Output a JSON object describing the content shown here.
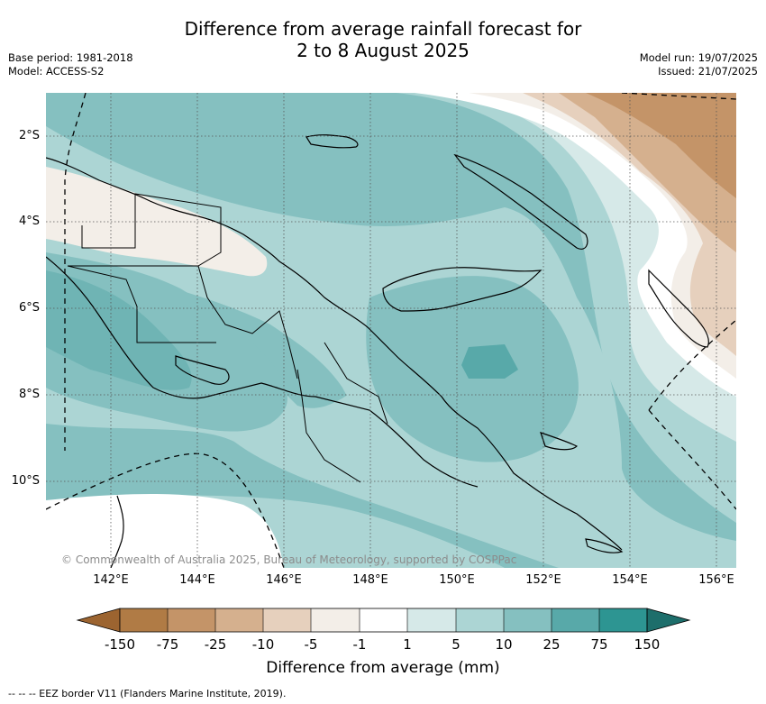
{
  "title_line1": "Difference from average rainfall forecast for",
  "title_line2": "2 to 8 August 2025",
  "meta_left": {
    "base_period": "Base period: 1981-2018",
    "model": "Model: ACCESS-S2"
  },
  "meta_right": {
    "model_run": "Model run: 19/07/2025",
    "issued": "Issued: 21/07/2025"
  },
  "map": {
    "lon_ticks": [
      "142°E",
      "144°E",
      "146°E",
      "148°E",
      "150°E",
      "152°E",
      "154°E",
      "156°E"
    ],
    "lat_ticks": [
      "2°S",
      "4°S",
      "6°S",
      "8°S",
      "10°S"
    ],
    "copyright": "© Commonwealth of Australia 2025, Bureau of Meteorology, supported by COSPPac",
    "gridlines": true
  },
  "colorbar": {
    "title": "Difference from average (mm)",
    "labels": [
      "-150",
      "-75",
      "-25",
      "-10",
      "-5",
      "-1",
      "1",
      "5",
      "10",
      "25",
      "75",
      "150"
    ],
    "colors": [
      "#9c6430",
      "#b07b45",
      "#c49468",
      "#d5b08e",
      "#e6d0bd",
      "#f3eee8",
      "#ffffff",
      "#d6e9e8",
      "#acd5d4",
      "#85c0c0",
      "#58a9a9",
      "#2d9592",
      "#1d6e6b"
    ]
  },
  "footnote": "-- -- -- EEZ border V11 (Flanders Marine Institute, 2019)."
}
